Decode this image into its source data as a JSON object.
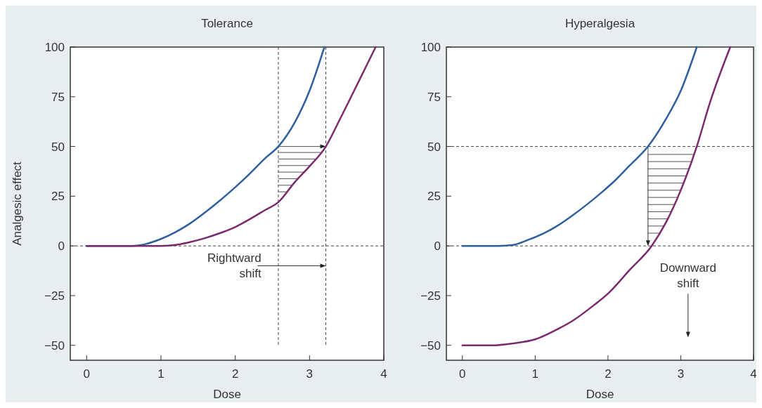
{
  "chart_data": [
    {
      "type": "line",
      "title": "Tolerance",
      "xlabel": "Dose",
      "ylabel": "Analgesic effect",
      "xlim": [
        -0.22,
        4
      ],
      "xticks": [
        0,
        1,
        2,
        3,
        4
      ],
      "ylim": [
        -57.5,
        100
      ],
      "yticks": [
        -50,
        -25,
        0,
        25,
        50,
        75,
        100
      ],
      "annotations": [
        "Rightward\nshift"
      ],
      "ref_lines": [
        {
          "axis": "x",
          "value": 2.58,
          "line_style": "dashed"
        },
        {
          "axis": "x",
          "value": 3.22,
          "line_style": "dashed"
        },
        {
          "axis": "y",
          "value": 0,
          "line_style": "dashed"
        }
      ],
      "series": [
        {
          "color": "#2f5f9e",
          "x": [
            0,
            0.3,
            0.6,
            0.8,
            1.0,
            1.2,
            1.4,
            1.6,
            1.8,
            2.0,
            2.2,
            2.4,
            2.58,
            2.8,
            3.0,
            3.2
          ],
          "values": [
            0,
            0,
            0,
            1,
            3.5,
            7,
            11.5,
            17,
            23,
            29.5,
            36.5,
            44,
            50,
            62,
            78,
            100
          ]
        },
        {
          "color": "#7a2a6e",
          "x": [
            0,
            0.6,
            1.0,
            1.2,
            1.4,
            1.6,
            1.8,
            2.0,
            2.2,
            2.4,
            2.58,
            2.8,
            3.0,
            3.22,
            3.4,
            3.6,
            3.89
          ],
          "values": [
            0,
            0,
            0,
            0.5,
            2,
            4,
            6.5,
            9.5,
            13.5,
            18,
            22,
            32,
            40,
            50,
            63,
            78,
            100
          ]
        }
      ]
    },
    {
      "type": "line",
      "title": "Hyperalgesia",
      "xlabel": "Dose",
      "xlim": [
        -0.22,
        4
      ],
      "xticks": [
        0,
        1,
        2,
        3,
        4
      ],
      "ylim": [
        -57.5,
        100
      ],
      "yticks": [
        -50,
        -25,
        0,
        25,
        50,
        75,
        100
      ],
      "annotations": [
        "Downward\nshift"
      ],
      "ref_lines": [
        {
          "axis": "y",
          "value": 0,
          "line_style": "dashed"
        },
        {
          "axis": "y",
          "value": 50,
          "line_style": "dashed"
        }
      ],
      "series": [
        {
          "color": "#2f5f9e",
          "x": [
            0,
            0.5,
            0.7,
            0.9,
            1.1,
            1.3,
            1.5,
            1.7,
            1.9,
            2.1,
            2.3,
            2.55,
            2.8,
            3.0,
            3.22
          ],
          "values": [
            0,
            0,
            0.5,
            3,
            6,
            10,
            15,
            20.5,
            26.5,
            33,
            40.5,
            50,
            64,
            78,
            100
          ]
        },
        {
          "color": "#7a2a6e",
          "x": [
            0,
            0.4,
            0.7,
            1.0,
            1.3,
            1.5,
            1.8,
            2.0,
            2.3,
            2.6,
            2.8,
            3.0,
            3.22,
            3.4,
            3.68
          ],
          "values": [
            -50,
            -50,
            -49,
            -47,
            -42,
            -38,
            -30,
            -24,
            -12,
            0,
            12,
            28,
            50,
            72,
            100
          ]
        }
      ]
    }
  ]
}
